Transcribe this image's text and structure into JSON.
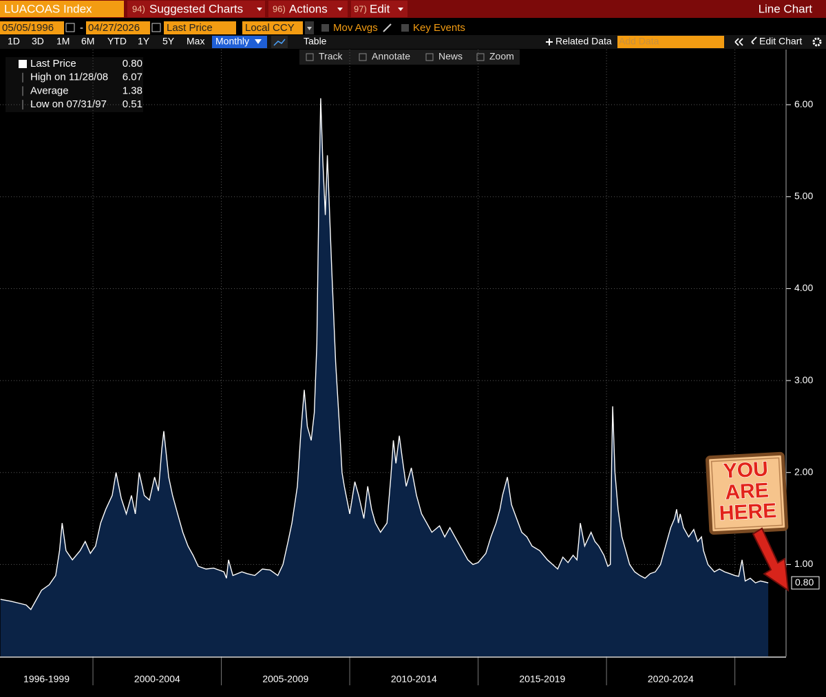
{
  "toolbar": {
    "ticker": "LUACOAS Index",
    "menus": [
      {
        "num": "94)",
        "label": "Suggested Charts"
      },
      {
        "num": "96)",
        "label": "Actions"
      },
      {
        "num": "97)",
        "label": "Edit"
      }
    ],
    "chart_kind": "Line Chart"
  },
  "controls": {
    "start_date": "05/05/1996",
    "separator": "-",
    "end_date": "04/27/2026",
    "field": "Last Price",
    "currency": "Local CCY",
    "mov_avgs": "Mov Avgs",
    "key_events": "Key Events"
  },
  "ranges": [
    "1D",
    "3D",
    "1M",
    "6M",
    "YTD",
    "1Y",
    "5Y",
    "Max"
  ],
  "frequency": "Monthly",
  "table": "Table",
  "related_data": "Related Data",
  "add_data": "Add Data",
  "edit_chart": "Edit Chart",
  "tools": [
    "Track",
    "Annotate",
    "News",
    "Zoom"
  ],
  "legend": [
    {
      "label": "Last Price",
      "value": "0.80"
    },
    {
      "label": "High on 11/28/08",
      "value": "6.07"
    },
    {
      "label": "Average",
      "value": "1.38"
    },
    {
      "label": "Low on 07/31/97",
      "value": "0.51"
    }
  ],
  "chart_data": {
    "type": "area",
    "color": "#ffffff",
    "fill_color": "#0b2346",
    "grid": true,
    "x": [
      1996.4,
      1996.8,
      1997.1,
      1997.4,
      1997.58,
      1997.8,
      1998.0,
      1998.3,
      1998.55,
      1998.7,
      1998.8,
      1998.95,
      1999.2,
      1999.5,
      1999.7,
      1999.9,
      2000.1,
      2000.3,
      2000.5,
      2000.75,
      2000.9,
      2001.1,
      2001.3,
      2001.5,
      2001.65,
      2001.8,
      2002.0,
      2002.2,
      2002.4,
      2002.55,
      2002.68,
      2002.76,
      2002.95,
      2003.1,
      2003.3,
      2003.5,
      2003.7,
      2003.9,
      2004.1,
      2004.4,
      2004.7,
      2004.9,
      2005.1,
      2005.2,
      2005.28,
      2005.45,
      2005.8,
      2006.0,
      2006.3,
      2006.6,
      2006.9,
      2007.2,
      2007.4,
      2007.6,
      2007.75,
      2007.96,
      2008.1,
      2008.23,
      2008.35,
      2008.5,
      2008.62,
      2008.72,
      2008.8,
      2008.87,
      2008.95,
      2009.05,
      2009.13,
      2009.3,
      2009.45,
      2009.6,
      2009.7,
      2009.79,
      2010.0,
      2010.2,
      2010.35,
      2010.55,
      2010.7,
      2010.85,
      2011.0,
      2011.2,
      2011.45,
      2011.6,
      2011.7,
      2011.8,
      2011.93,
      2012.05,
      2012.2,
      2012.4,
      2012.6,
      2012.8,
      2013.0,
      2013.2,
      2013.5,
      2013.7,
      2013.9,
      2014.1,
      2014.4,
      2014.6,
      2014.8,
      2015.0,
      2015.3,
      2015.5,
      2015.7,
      2015.85,
      2015.95,
      2016.14,
      2016.3,
      2016.5,
      2016.7,
      2016.9,
      2017.1,
      2017.4,
      2017.7,
      2017.9,
      2018.1,
      2018.3,
      2018.5,
      2018.7,
      2018.85,
      2018.92,
      2018.98,
      2019.15,
      2019.4,
      2019.55,
      2019.7,
      2019.9,
      2020.05,
      2020.15,
      2020.2,
      2020.24,
      2020.33,
      2020.45,
      2020.6,
      2020.75,
      2020.9,
      2021.1,
      2021.3,
      2021.5,
      2021.7,
      2021.9,
      2022.1,
      2022.3,
      2022.5,
      2022.65,
      2022.73,
      2022.8,
      2022.87,
      2023.0,
      2023.2,
      2023.4,
      2023.55,
      2023.7,
      2023.78,
      2023.95,
      2024.2,
      2024.4,
      2024.6,
      2024.8,
      2025.0,
      2025.15,
      2025.28,
      2025.4,
      2025.6,
      2025.8,
      2026.0,
      2026.3
    ],
    "values": [
      0.62,
      0.6,
      0.58,
      0.56,
      0.51,
      0.62,
      0.72,
      0.78,
      0.88,
      1.15,
      1.45,
      1.15,
      1.05,
      1.15,
      1.25,
      1.12,
      1.2,
      1.45,
      1.6,
      1.75,
      2.0,
      1.72,
      1.55,
      1.75,
      1.55,
      2.0,
      1.75,
      1.7,
      1.95,
      1.8,
      2.25,
      2.45,
      1.95,
      1.75,
      1.55,
      1.35,
      1.2,
      1.1,
      0.98,
      0.95,
      0.96,
      0.94,
      0.92,
      0.85,
      1.05,
      0.88,
      0.92,
      0.9,
      0.88,
      0.95,
      0.94,
      0.88,
      1.0,
      1.25,
      1.45,
      1.85,
      2.45,
      2.9,
      2.5,
      2.35,
      2.65,
      3.4,
      5.0,
      6.07,
      5.4,
      4.8,
      5.45,
      4.2,
      3.2,
      2.5,
      2.0,
      1.85,
      1.55,
      1.9,
      1.75,
      1.5,
      1.85,
      1.6,
      1.45,
      1.35,
      1.45,
      1.95,
      2.35,
      2.1,
      2.4,
      2.15,
      1.85,
      2.05,
      1.75,
      1.55,
      1.45,
      1.35,
      1.42,
      1.3,
      1.4,
      1.3,
      1.15,
      1.05,
      1.0,
      1.02,
      1.12,
      1.3,
      1.45,
      1.6,
      1.75,
      1.95,
      1.65,
      1.5,
      1.35,
      1.3,
      1.2,
      1.15,
      1.05,
      1.0,
      0.95,
      1.08,
      1.02,
      1.1,
      1.05,
      1.25,
      1.45,
      1.2,
      1.35,
      1.25,
      1.2,
      1.1,
      0.98,
      1.0,
      2.1,
      2.72,
      2.0,
      1.6,
      1.3,
      1.15,
      1.0,
      0.92,
      0.88,
      0.85,
      0.9,
      0.92,
      1.0,
      1.2,
      1.4,
      1.5,
      1.6,
      1.45,
      1.55,
      1.4,
      1.3,
      1.38,
      1.25,
      1.3,
      1.15,
      1.0,
      0.92,
      0.95,
      0.92,
      0.9,
      0.88,
      0.87,
      1.05,
      0.82,
      0.85,
      0.8,
      0.82,
      0.8
    ],
    "xlim": [
      1996.38,
      2026.94
    ],
    "xticks": [
      2000,
      2005,
      2010,
      2015,
      2020,
      2025
    ],
    "period_labels": [
      "1996-1999",
      "2000-2004",
      "2005-2009",
      "2010-2014",
      "2015-2019",
      "2020-2024"
    ],
    "ylim": [
      0,
      6.6
    ],
    "yticks": [
      {
        "value": 1,
        "label": "1.00"
      },
      {
        "value": 2,
        "label": "2.00"
      },
      {
        "value": 3,
        "label": "3.00"
      },
      {
        "value": 4,
        "label": "4.00"
      },
      {
        "value": 5,
        "label": "5.00"
      },
      {
        "value": 6,
        "label": "6.00"
      }
    ],
    "annotation": [
      "YOU",
      "ARE",
      "HERE"
    ]
  }
}
